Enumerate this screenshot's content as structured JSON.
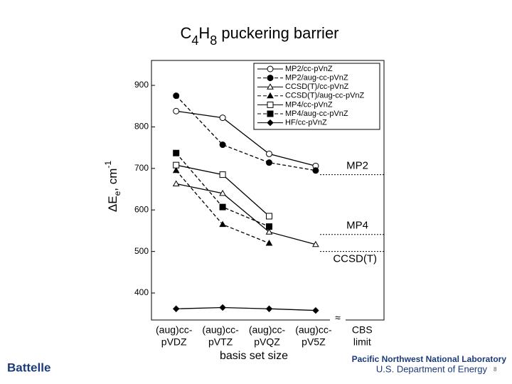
{
  "chart_data": {
    "type": "line",
    "title": [
      "C",
      "4",
      "H",
      "8",
      " puckering barrier"
    ],
    "ylabel": [
      "ΔE",
      "e",
      ", cm",
      "-1"
    ],
    "xlabel": "basis set size",
    "categories": [
      [
        "(aug)cc-",
        "pVDZ"
      ],
      [
        "(aug)cc-",
        "pVTZ"
      ],
      [
        "(aug)cc-",
        "pVQZ"
      ],
      [
        "(aug)cc-",
        "pV5Z"
      ],
      [
        "CBS",
        "limit"
      ]
    ],
    "ylim": [
      335,
      960
    ],
    "yticks": [
      400,
      500,
      600,
      700,
      800,
      900
    ],
    "series": [
      {
        "name": "MP2/cc-pVnZ",
        "color": "#000",
        "marker": "circle",
        "filled": false,
        "dashed": false,
        "values": [
          838,
          822,
          735,
          706,
          null
        ]
      },
      {
        "name": "MP2/aug-cc-pVnZ",
        "color": "#000",
        "marker": "circle",
        "filled": true,
        "dashed": true,
        "values": [
          875,
          757,
          714,
          695,
          null
        ]
      },
      {
        "name": "CCSD(T)/cc-pVnZ",
        "color": "#000",
        "marker": "triangle",
        "filled": false,
        "dashed": false,
        "values": [
          663,
          640,
          547,
          517,
          null
        ]
      },
      {
        "name": "CCSD(T)/aug-cc-pVnZ",
        "color": "#000",
        "marker": "triangle",
        "filled": true,
        "dashed": true,
        "values": [
          695,
          565,
          520,
          null,
          null
        ]
      },
      {
        "name": "MP4/cc-pVnZ",
        "color": "#000",
        "marker": "square",
        "filled": false,
        "dashed": false,
        "values": [
          708,
          685,
          585,
          null,
          null
        ]
      },
      {
        "name": "MP4/aug-cc-pVnZ",
        "color": "#000",
        "marker": "square",
        "filled": true,
        "dashed": true,
        "values": [
          737,
          607,
          560,
          null,
          null
        ]
      },
      {
        "name": "HF/cc-pVnZ",
        "color": "#000",
        "marker": "diamond",
        "filled": true,
        "dashed": false,
        "values": [
          362,
          365,
          362,
          358,
          null
        ]
      }
    ],
    "cbs_limits": [
      {
        "label": "MP2",
        "value": 685
      },
      {
        "label": "MP4",
        "value": 541
      },
      {
        "label": "CCSD(T)",
        "value": 500
      }
    ]
  },
  "footer": {
    "left": "Battelle",
    "lab": "Pacific Northwest National Laboratory",
    "dept": "U.S. Department of Energy",
    "page": "8"
  }
}
